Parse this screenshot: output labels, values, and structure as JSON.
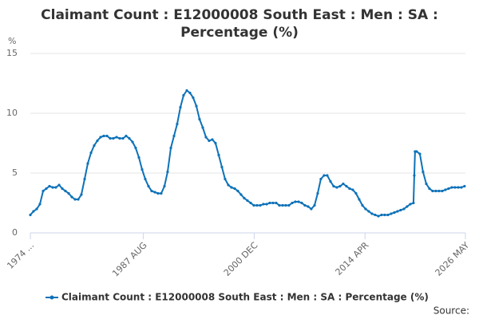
{
  "chart_data": {
    "type": "line",
    "title": "Claimant Count : E12000008 South East : Men : SA : Percentage (%)",
    "y_label": "%",
    "source": "Source:",
    "x": [
      1974.0,
      1974.38,
      1974.77,
      1975.15,
      1975.54,
      1975.92,
      1976.3,
      1976.69,
      1977.07,
      1977.46,
      1977.84,
      1978.22,
      1978.61,
      1978.99,
      1979.38,
      1979.76,
      1980.14,
      1980.53,
      1980.91,
      1981.3,
      1981.68,
      1982.06,
      1982.45,
      1982.83,
      1983.22,
      1983.6,
      1983.98,
      1984.37,
      1984.75,
      1985.14,
      1985.52,
      1985.9,
      1986.29,
      1986.67,
      1987.06,
      1987.44,
      1987.82,
      1988.21,
      1988.59,
      1988.98,
      1989.36,
      1989.74,
      1990.13,
      1990.51,
      1990.9,
      1991.28,
      1991.66,
      1992.05,
      1992.43,
      1992.82,
      1993.2,
      1993.58,
      1993.97,
      1994.35,
      1994.74,
      1995.12,
      1995.5,
      1995.89,
      1996.27,
      1996.66,
      1997.04,
      1997.42,
      1997.81,
      1998.19,
      1998.58,
      1998.96,
      1999.34,
      1999.73,
      2000.11,
      2000.5,
      2000.88,
      2001.26,
      2001.65,
      2002.03,
      2002.42,
      2002.8,
      2003.18,
      2003.57,
      2003.95,
      2004.34,
      2004.72,
      2005.1,
      2005.49,
      2005.87,
      2006.26,
      2006.64,
      2007.02,
      2007.41,
      2007.79,
      2008.18,
      2008.56,
      2008.94,
      2009.33,
      2009.71,
      2010.1,
      2010.48,
      2010.86,
      2011.25,
      2011.63,
      2012.02,
      2012.4,
      2012.78,
      2013.17,
      2013.55,
      2013.94,
      2014.32,
      2014.7,
      2015.09,
      2015.47,
      2015.86,
      2016.24,
      2016.62,
      2017.01,
      2017.39,
      2017.78,
      2018.16,
      2018.54,
      2018.93,
      2019.31,
      2019.7,
      2020.08,
      2020.18,
      2020.27,
      2020.46,
      2020.85,
      2021.23,
      2021.62,
      2022.0,
      2022.38,
      2022.77,
      2023.15,
      2023.54,
      2023.92,
      2024.3,
      2024.69,
      2025.07,
      2025.46,
      2025.84,
      2026.22
    ],
    "series": [
      {
        "name": "Claimant Count : E12000008 South East : Men : SA : Percentage (%)",
        "color": "#0e72b8",
        "values": [
          1.5,
          1.8,
          2.0,
          2.4,
          3.5,
          3.7,
          3.9,
          3.8,
          3.8,
          4.0,
          3.7,
          3.5,
          3.3,
          3.0,
          2.8,
          2.8,
          3.2,
          4.5,
          5.8,
          6.7,
          7.3,
          7.7,
          8.0,
          8.1,
          8.1,
          7.9,
          7.9,
          8.0,
          7.9,
          7.9,
          8.1,
          7.9,
          7.6,
          7.1,
          6.3,
          5.3,
          4.5,
          3.9,
          3.5,
          3.4,
          3.3,
          3.3,
          3.9,
          5.1,
          7.1,
          8.1,
          9.1,
          10.5,
          11.5,
          11.9,
          11.7,
          11.3,
          10.6,
          9.5,
          8.8,
          8.0,
          7.7,
          7.8,
          7.5,
          6.5,
          5.5,
          4.5,
          4.0,
          3.8,
          3.7,
          3.5,
          3.2,
          2.9,
          2.7,
          2.5,
          2.3,
          2.3,
          2.3,
          2.4,
          2.4,
          2.5,
          2.5,
          2.5,
          2.3,
          2.3,
          2.3,
          2.3,
          2.5,
          2.6,
          2.6,
          2.5,
          2.3,
          2.2,
          2.0,
          2.3,
          3.3,
          4.5,
          4.8,
          4.8,
          4.3,
          3.9,
          3.8,
          3.9,
          4.1,
          3.9,
          3.7,
          3.6,
          3.3,
          2.8,
          2.3,
          2.0,
          1.8,
          1.6,
          1.5,
          1.4,
          1.5,
          1.5,
          1.5,
          1.6,
          1.7,
          1.8,
          1.9,
          2.0,
          2.2,
          2.4,
          2.5,
          4.8,
          6.8,
          6.8,
          6.6,
          5.1,
          4.1,
          3.7,
          3.5,
          3.5,
          3.5,
          3.5,
          3.6,
          3.7,
          3.8,
          3.8,
          3.8,
          3.8,
          3.9
        ]
      }
    ],
    "xlim": [
      1974.0,
      2026.33
    ],
    "xticks": [
      {
        "value": 1974.0,
        "label": "1974 ..."
      },
      {
        "value": 1987.58,
        "label": "1987 AUG"
      },
      {
        "value": 2000.92,
        "label": "2000 DEC"
      },
      {
        "value": 2014.25,
        "label": "2014 APR"
      },
      {
        "value": 2026.33,
        "label": "2026 MAY"
      }
    ],
    "ylim": [
      0,
      15
    ],
    "yticks": [
      0,
      5,
      10,
      15
    ],
    "grid": true
  }
}
